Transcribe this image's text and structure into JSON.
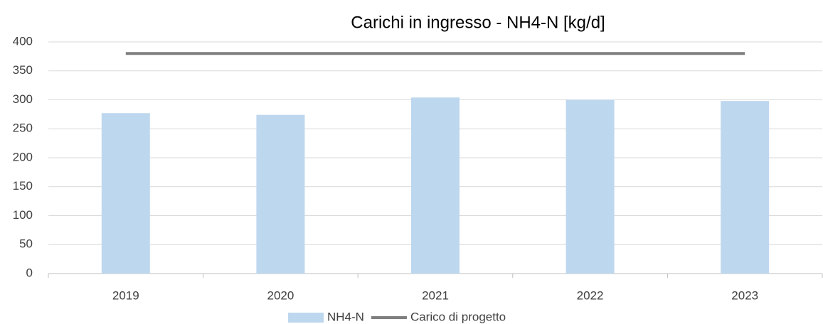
{
  "chart_data": {
    "type": "bar",
    "title": "Carichi in ingresso - NH4-N [kg/d]",
    "categories": [
      "2019",
      "2020",
      "2021",
      "2022",
      "2023"
    ],
    "series": [
      {
        "name": "NH4-N",
        "type": "bar",
        "color": "#bdd7ee",
        "values": [
          277,
          274,
          304,
          300,
          298
        ]
      },
      {
        "name": "Carico di progetto",
        "type": "line",
        "color": "#7f7f7f",
        "values": [
          380,
          380,
          380,
          380,
          380
        ]
      }
    ],
    "ylim": [
      0,
      400
    ],
    "yticks": [
      0,
      50,
      100,
      150,
      200,
      250,
      300,
      350,
      400
    ],
    "grid": true,
    "legend": "bottom"
  }
}
